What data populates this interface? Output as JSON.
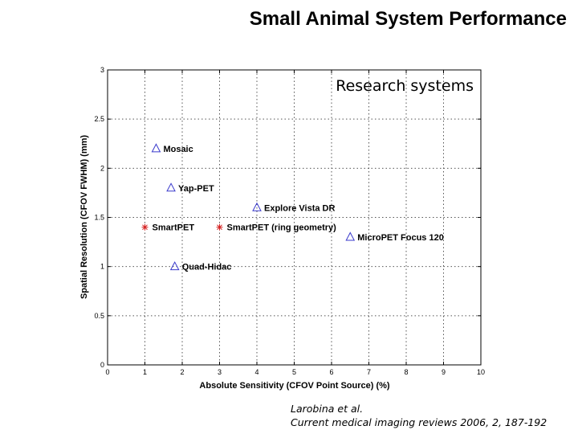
{
  "slide": {
    "title": "Small Animal System Performance",
    "citation_line1": "Larobina et al.",
    "citation_line2": "Current medical imaging reviews 2006, 2, 187-192"
  },
  "chart_data": {
    "type": "scatter",
    "title": "",
    "inset_label": "Research systems",
    "xlabel": "Absolute Sensitivity (CFOV Point Source) (%)",
    "ylabel": "Spatial Resolution (CFOV FWHM) (mm)",
    "xlim": [
      0,
      10
    ],
    "ylim": [
      0,
      3
    ],
    "x_ticks": [
      "0",
      "1",
      "2",
      "3",
      "4",
      "5",
      "6",
      "7",
      "8",
      "9",
      "10"
    ],
    "y_ticks": [
      "0",
      "0.5",
      "1",
      "1.5",
      "2",
      "2.5",
      "3"
    ],
    "grid": true,
    "colors": {
      "triangle": "#3a3acc",
      "star": "#d42020",
      "grid": "#555555",
      "axis": "#000000"
    },
    "points": [
      {
        "label": "Mosaic",
        "x": 1.3,
        "y": 2.2,
        "marker": "triangle"
      },
      {
        "label": "Yap-PET",
        "x": 1.7,
        "y": 1.8,
        "marker": "triangle"
      },
      {
        "label": "Explore Vista DR",
        "x": 4.0,
        "y": 1.6,
        "marker": "triangle"
      },
      {
        "label": "SmartPET",
        "x": 1.0,
        "y": 1.4,
        "marker": "star"
      },
      {
        "label": "SmartPET (ring geometry)",
        "x": 3.0,
        "y": 1.4,
        "marker": "star"
      },
      {
        "label": "MicroPET Focus 120",
        "x": 6.5,
        "y": 1.3,
        "marker": "triangle"
      },
      {
        "label": "Quad-Hidac",
        "x": 1.8,
        "y": 1.0,
        "marker": "triangle"
      }
    ]
  }
}
